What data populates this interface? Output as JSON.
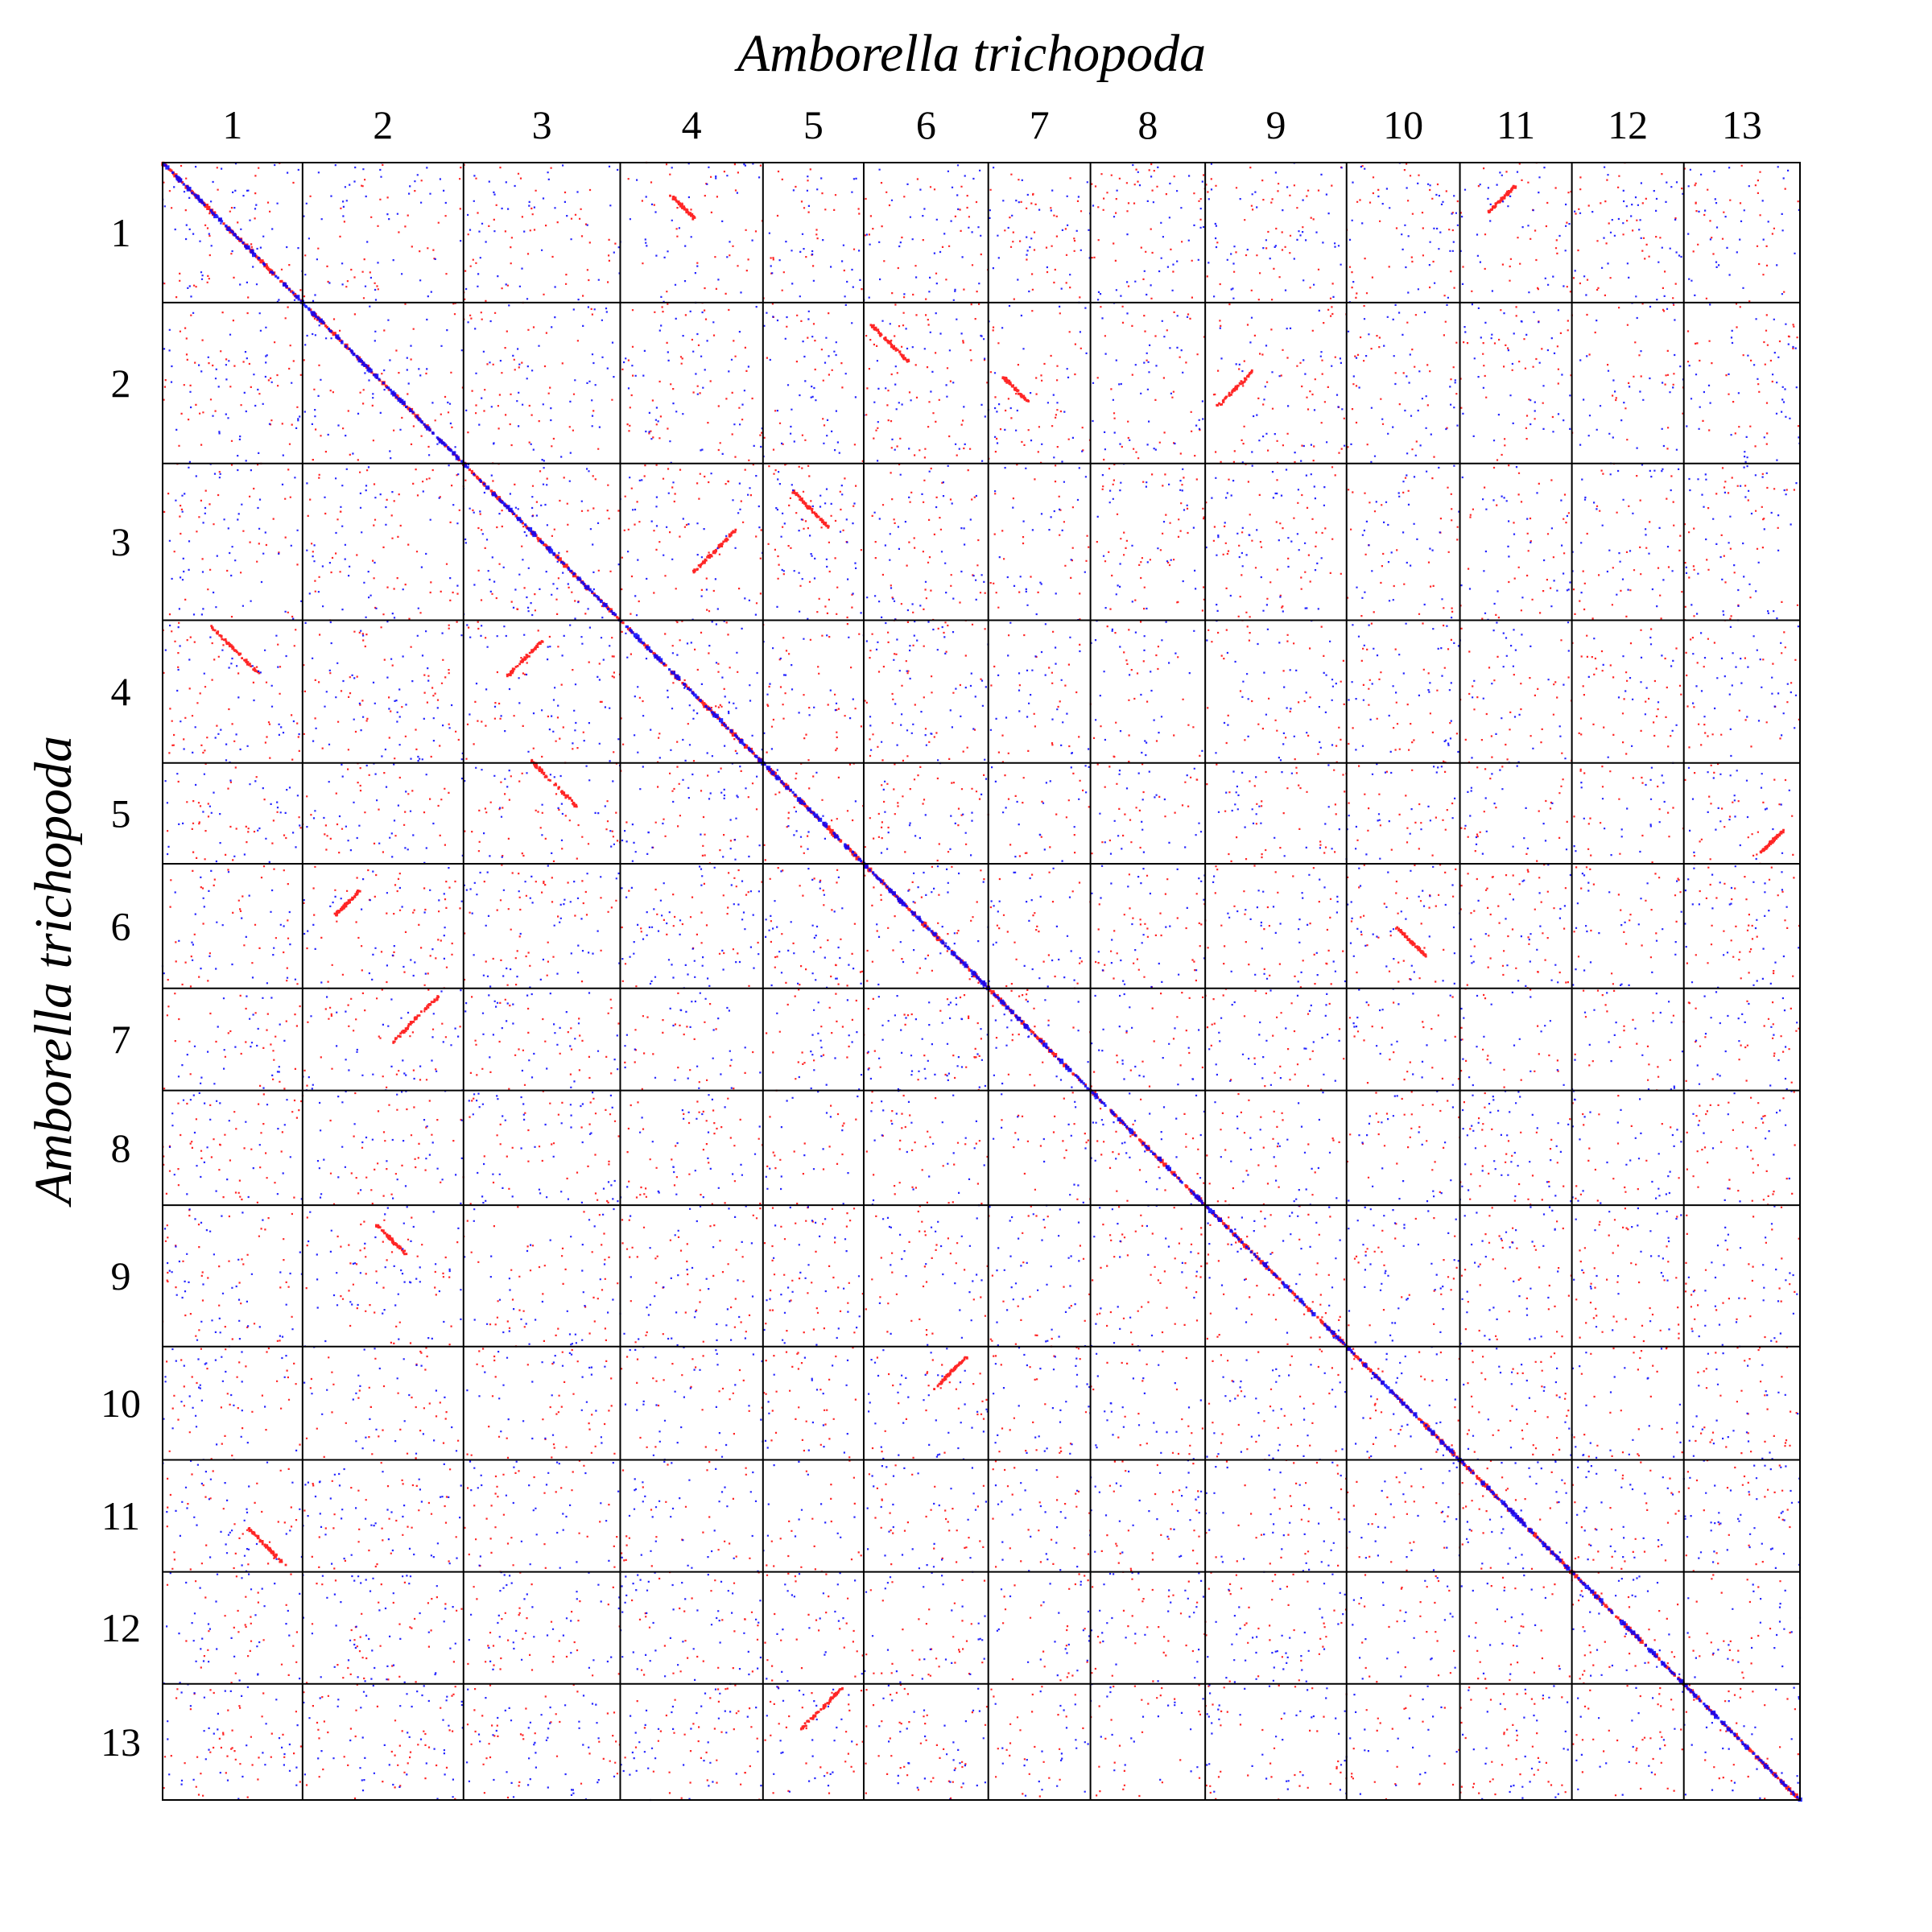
{
  "chart_data": {
    "type": "scatter",
    "subtype": "whole-genome dot plot",
    "title": "",
    "xlabel": "Amborella trichopoda",
    "ylabel": "Amborella trichopoda",
    "x_categories": [
      "1",
      "2",
      "3",
      "4",
      "5",
      "6",
      "7",
      "8",
      "9",
      "10",
      "11",
      "12",
      "13"
    ],
    "y_categories": [
      "1",
      "2",
      "3",
      "4",
      "5",
      "6",
      "7",
      "8",
      "9",
      "10",
      "11",
      "12",
      "13"
    ],
    "chromosome_relative_lengths": [
      1.0,
      1.15,
      1.12,
      1.02,
      0.72,
      0.89,
      0.73,
      0.82,
      1.01,
      0.81,
      0.8,
      0.8,
      0.83
    ],
    "x_axis_position": "top",
    "y_axis_position": "left",
    "grid": true,
    "legend": "none",
    "series": [
      {
        "color": "#ff0000",
        "role": "red dots"
      },
      {
        "color": "#0000ff",
        "role": "blue dots"
      }
    ],
    "diagonal": "main self-alignment from chromosome 1 start to chromosome 13 end",
    "notable_off_diagonal_blocks": [
      {
        "x_chr": "1",
        "y_chr": "4"
      },
      {
        "x_chr": "4",
        "y_chr": "1"
      },
      {
        "x_chr": "2",
        "y_chr": "6"
      },
      {
        "x_chr": "6",
        "y_chr": "2"
      },
      {
        "x_chr": "3",
        "y_chr": "4"
      },
      {
        "x_chr": "4",
        "y_chr": "3"
      },
      {
        "x_chr": "3",
        "y_chr": "5"
      },
      {
        "x_chr": "5",
        "y_chr": "3"
      },
      {
        "x_chr": "1",
        "y_chr": "11"
      },
      {
        "x_chr": "11",
        "y_chr": "1"
      },
      {
        "x_chr": "2",
        "y_chr": "9"
      },
      {
        "x_chr": "9",
        "y_chr": "2"
      },
      {
        "x_chr": "6",
        "y_chr": "10"
      },
      {
        "x_chr": "10",
        "y_chr": "6"
      },
      {
        "x_chr": "5",
        "y_chr": "13"
      },
      {
        "x_chr": "13",
        "y_chr": "5"
      },
      {
        "x_chr": "7",
        "y_chr": "2"
      },
      {
        "x_chr": "2",
        "y_chr": "7"
      }
    ]
  }
}
